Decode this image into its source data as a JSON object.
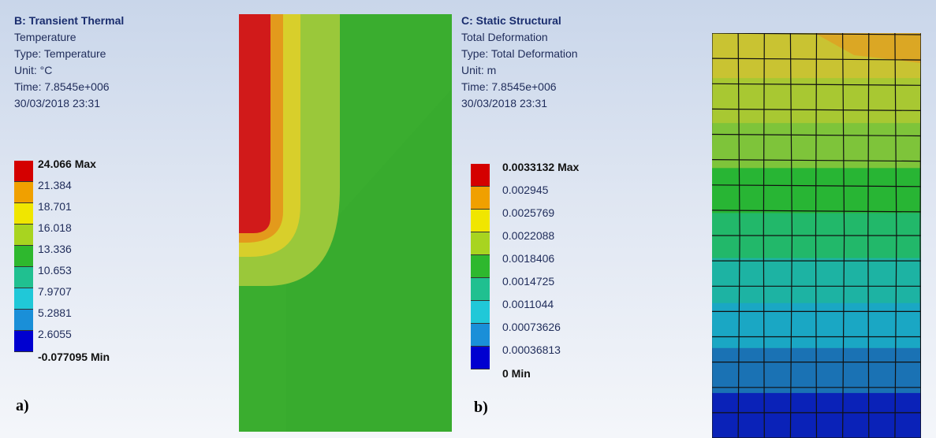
{
  "panel_a": {
    "title": "B: Transient Thermal",
    "info": [
      "Temperature",
      "Type: Temperature",
      "Unit: °C",
      "Time: 7.8545e+006",
      "30/03/2018 23:31"
    ],
    "legend_max": "24.066 Max",
    "legend_levels": [
      "21.384",
      "18.701",
      "16.018",
      "13.336",
      "10.653",
      "7.9707",
      "5.2881",
      "2.6055"
    ],
    "legend_min": "-0.077095 Min",
    "legend_colors": [
      "#d40000",
      "#f0a000",
      "#f0e600",
      "#a8d420",
      "#2eb82e",
      "#20c090",
      "#20c8d8",
      "#1a8fd8",
      "#0000d0"
    ],
    "fig_label": "a)",
    "contour_colors": {
      "hot": "#d11a1a",
      "orange": "#e39a1c",
      "yellow": "#d8cf2b",
      "lime": "#9ac83a",
      "green": "#3aad2f",
      "green_dark": "#36a92d"
    }
  },
  "panel_b": {
    "title": "C: Static Structural",
    "info": [
      "Total Deformation",
      "Type: Total Deformation",
      "Unit: m",
      "Time: 7.8545e+006",
      "30/03/2018 23:31"
    ],
    "legend_max": "0.0033132 Max",
    "legend_levels": [
      "0.002945",
      "0.0025769",
      "0.0022088",
      "0.0018406",
      "0.0014725",
      "0.0011044",
      "0.00073626",
      "0.00036813"
    ],
    "legend_min": "0 Min",
    "legend_colors": [
      "#d40000",
      "#f0a000",
      "#f0e600",
      "#a8d420",
      "#2eb82e",
      "#20c090",
      "#20c8d8",
      "#1a8fd8",
      "#0000d0"
    ],
    "fig_label": "b)",
    "mesh_band_colors": [
      "#c9c332",
      "#a8c832",
      "#7ec43a",
      "#28b534",
      "#22b86a",
      "#1db3a3",
      "#1aa7c4",
      "#1a72b4",
      "#0a22b8"
    ],
    "mesh_corner_accent": "#e0a020"
  }
}
